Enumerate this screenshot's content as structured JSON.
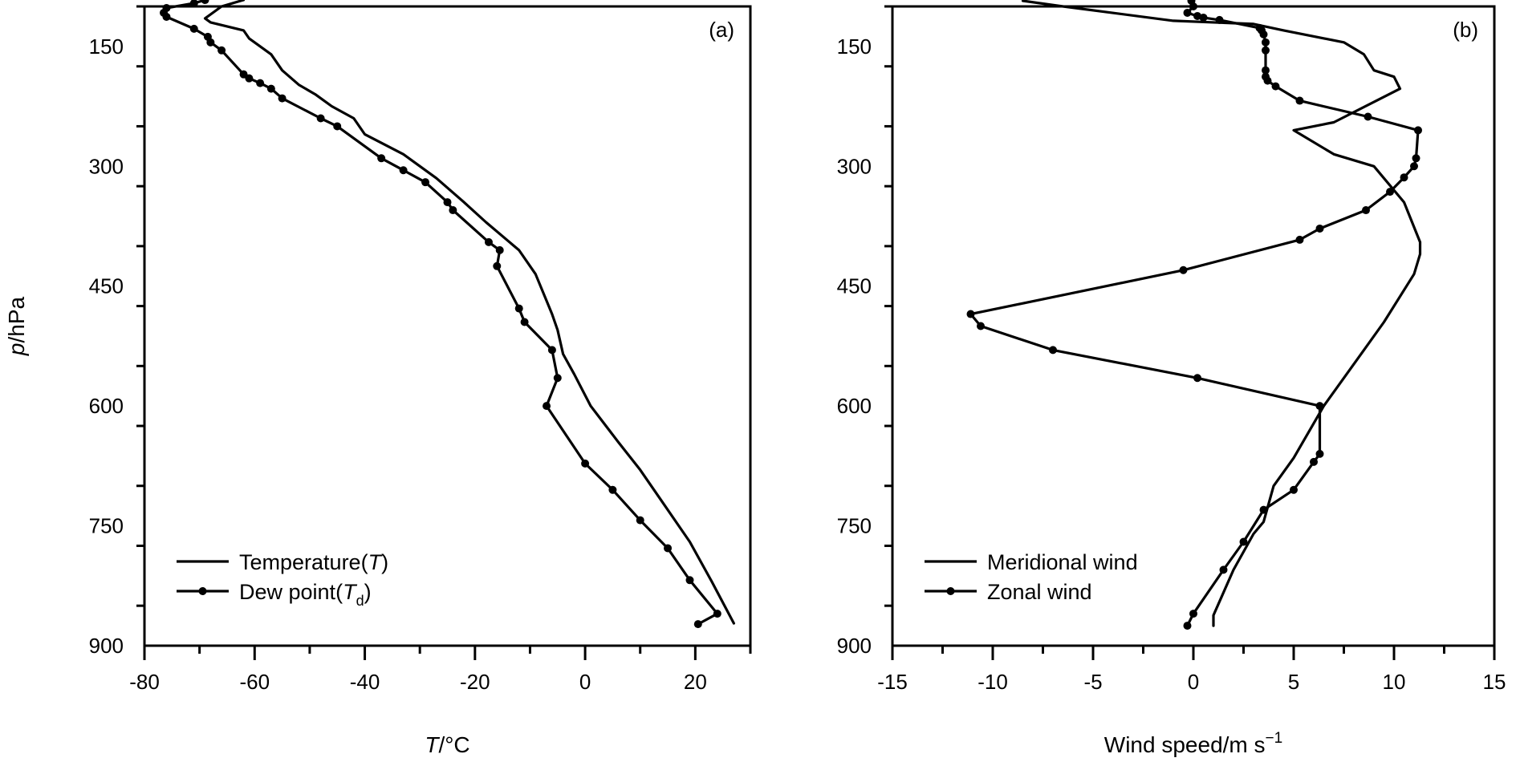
{
  "chart_data": [
    {
      "type": "line",
      "panel_label": "(a)",
      "xlabel": {
        "italic": "T",
        "rest": "/°C"
      },
      "ylabel": {
        "italic": "p",
        "rest": "/hPa"
      },
      "xlim": [
        -80,
        30
      ],
      "ylim": [
        900,
        100
      ],
      "x_ticks": [
        -80,
        -60,
        -40,
        -20,
        0,
        20
      ],
      "x_tick_labels": [
        "-80",
        "-60",
        "-40",
        "-20",
        "0",
        "20"
      ],
      "y_ticks": [
        150,
        300,
        450,
        600,
        750,
        900
      ],
      "y_tick_labels": [
        "150",
        "300",
        "450",
        "600",
        "750",
        "900"
      ],
      "legend_position": "bottom-left",
      "series": [
        {
          "name": {
            "text": "Temperature(",
            "italic": "T",
            "sub": "",
            "close": ")"
          },
          "marker": "none",
          "points": [
            [
              27,
              872
            ],
            [
              23,
              820
            ],
            [
              19,
              770
            ],
            [
              14,
              720
            ],
            [
              10,
              680
            ],
            [
              6,
              645
            ],
            [
              1,
              600
            ],
            [
              -2,
              560
            ],
            [
              -4,
              535
            ],
            [
              -5,
              505
            ],
            [
              -6,
              485
            ],
            [
              -9,
              435
            ],
            [
              -12,
              405
            ],
            [
              -18,
              370
            ],
            [
              -22,
              345
            ],
            [
              -27,
              315
            ],
            [
              -33,
              285
            ],
            [
              -40,
              260
            ],
            [
              -42,
              240
            ],
            [
              -46,
              225
            ],
            [
              -49,
              210
            ],
            [
              -52,
              198
            ],
            [
              -55,
              180
            ],
            [
              -57,
              160
            ],
            [
              -59,
              150
            ],
            [
              -61,
              140
            ],
            [
              -62,
              130
            ],
            [
              -68,
              120
            ],
            [
              -69,
              115
            ],
            [
              -66,
              100
            ],
            [
              -62,
              92
            ]
          ]
        },
        {
          "name": {
            "text": "Dew point(",
            "italic": "T",
            "sub": "d",
            "close": ")"
          },
          "marker": "dot",
          "points": [
            [
              20.5,
              873
            ],
            [
              24,
              860
            ],
            [
              19,
              818
            ],
            [
              15,
              778
            ],
            [
              10,
              743
            ],
            [
              5,
              705
            ],
            [
              0,
              672
            ],
            [
              -7,
              600
            ],
            [
              -5,
              565
            ],
            [
              -6,
              530
            ],
            [
              -11,
              495
            ],
            [
              -12,
              478
            ],
            [
              -16,
              425
            ],
            [
              -15.5,
              405
            ],
            [
              -17.5,
              395
            ],
            [
              -24,
              355
            ],
            [
              -25,
              345
            ],
            [
              -29,
              320
            ],
            [
              -33,
              305
            ],
            [
              -37,
              290
            ],
            [
              -45,
              250
            ],
            [
              -48,
              240
            ],
            [
              -55,
              215
            ],
            [
              -57,
              203
            ],
            [
              -59,
              196
            ],
            [
              -61,
              190
            ],
            [
              -62,
              185
            ],
            [
              -66,
              155
            ],
            [
              -68,
              145
            ],
            [
              -68.5,
              138
            ],
            [
              -71,
              128
            ],
            [
              -76,
              113
            ],
            [
              -76.5,
              108
            ],
            [
              -76,
              102
            ],
            [
              -71,
              96
            ],
            [
              -69,
              92
            ]
          ]
        }
      ]
    },
    {
      "type": "line",
      "panel_label": "(b)",
      "xlabel": {
        "italic": "",
        "rest": "Wind speed/m s",
        "sup": "−1"
      },
      "ylabel": {
        "italic": "",
        "rest": ""
      },
      "xlim": [
        -15,
        15
      ],
      "ylim": [
        900,
        100
      ],
      "x_ticks": [
        -15,
        -10,
        -5,
        0,
        5,
        10,
        15
      ],
      "x_tick_labels": [
        "-15",
        "-10",
        "-5",
        "0",
        "5",
        "10",
        "15"
      ],
      "y_ticks": [
        150,
        300,
        450,
        600,
        750,
        900
      ],
      "y_tick_labels": [
        "150",
        "300",
        "450",
        "600",
        "750",
        "900"
      ],
      "legend_position": "bottom-left",
      "series": [
        {
          "name": {
            "text": "Meridional wind",
            "italic": "",
            "sub": "",
            "close": ""
          },
          "marker": "none",
          "points": [
            [
              1,
              875
            ],
            [
              1,
              862
            ],
            [
              2,
              805
            ],
            [
              3,
              760
            ],
            [
              3.5,
              745
            ],
            [
              4,
              700
            ],
            [
              5,
              665
            ],
            [
              6.5,
              600
            ],
            [
              8.5,
              530
            ],
            [
              9.5,
              495
            ],
            [
              11,
              435
            ],
            [
              11.3,
              410
            ],
            [
              11.3,
              395
            ],
            [
              10.5,
              345
            ],
            [
              9,
              300
            ],
            [
              7,
              285
            ],
            [
              5,
              255
            ],
            [
              7,
              245
            ],
            [
              10.3,
              203
            ],
            [
              10,
              188
            ],
            [
              9,
              180
            ],
            [
              8.5,
              160
            ],
            [
              7.5,
              145
            ],
            [
              4.5,
              130
            ],
            [
              3,
              122
            ],
            [
              -1,
              118
            ],
            [
              -6.5,
              100
            ],
            [
              -8.5,
              93
            ]
          ]
        },
        {
          "name": {
            "text": "Zonal wind",
            "italic": "",
            "sub": "",
            "close": ""
          },
          "marker": "dot",
          "points": [
            [
              -0.3,
              875
            ],
            [
              0,
              860
            ],
            [
              1.5,
              805
            ],
            [
              2.5,
              770
            ],
            [
              3.5,
              730
            ],
            [
              5,
              705
            ],
            [
              6,
              670
            ],
            [
              6.3,
              660
            ],
            [
              6.3,
              600
            ],
            [
              0.2,
              565
            ],
            [
              -7,
              530
            ],
            [
              -10.6,
              500
            ],
            [
              -11.1,
              485
            ],
            [
              -0.5,
              430
            ],
            [
              5.3,
              392
            ],
            [
              6.3,
              378
            ],
            [
              8.6,
              355
            ],
            [
              9.8,
              332
            ],
            [
              10.5,
              314
            ],
            [
              11,
              300
            ],
            [
              11.1,
              290
            ],
            [
              11.2,
              255
            ],
            [
              8.7,
              238
            ],
            [
              5.3,
              218
            ],
            [
              4.1,
              200
            ],
            [
              3.7,
              193
            ],
            [
              3.6,
              188
            ],
            [
              3.6,
              180
            ],
            [
              3.6,
              155
            ],
            [
              3.6,
              145
            ],
            [
              3.5,
              135
            ],
            [
              3.4,
              130
            ],
            [
              3.3,
              127
            ],
            [
              1.3,
              117
            ],
            [
              0.5,
              114
            ],
            [
              0.2,
              112
            ],
            [
              -0.3,
              108
            ],
            [
              0,
              100
            ],
            [
              -0.1,
              93
            ]
          ]
        }
      ]
    }
  ]
}
